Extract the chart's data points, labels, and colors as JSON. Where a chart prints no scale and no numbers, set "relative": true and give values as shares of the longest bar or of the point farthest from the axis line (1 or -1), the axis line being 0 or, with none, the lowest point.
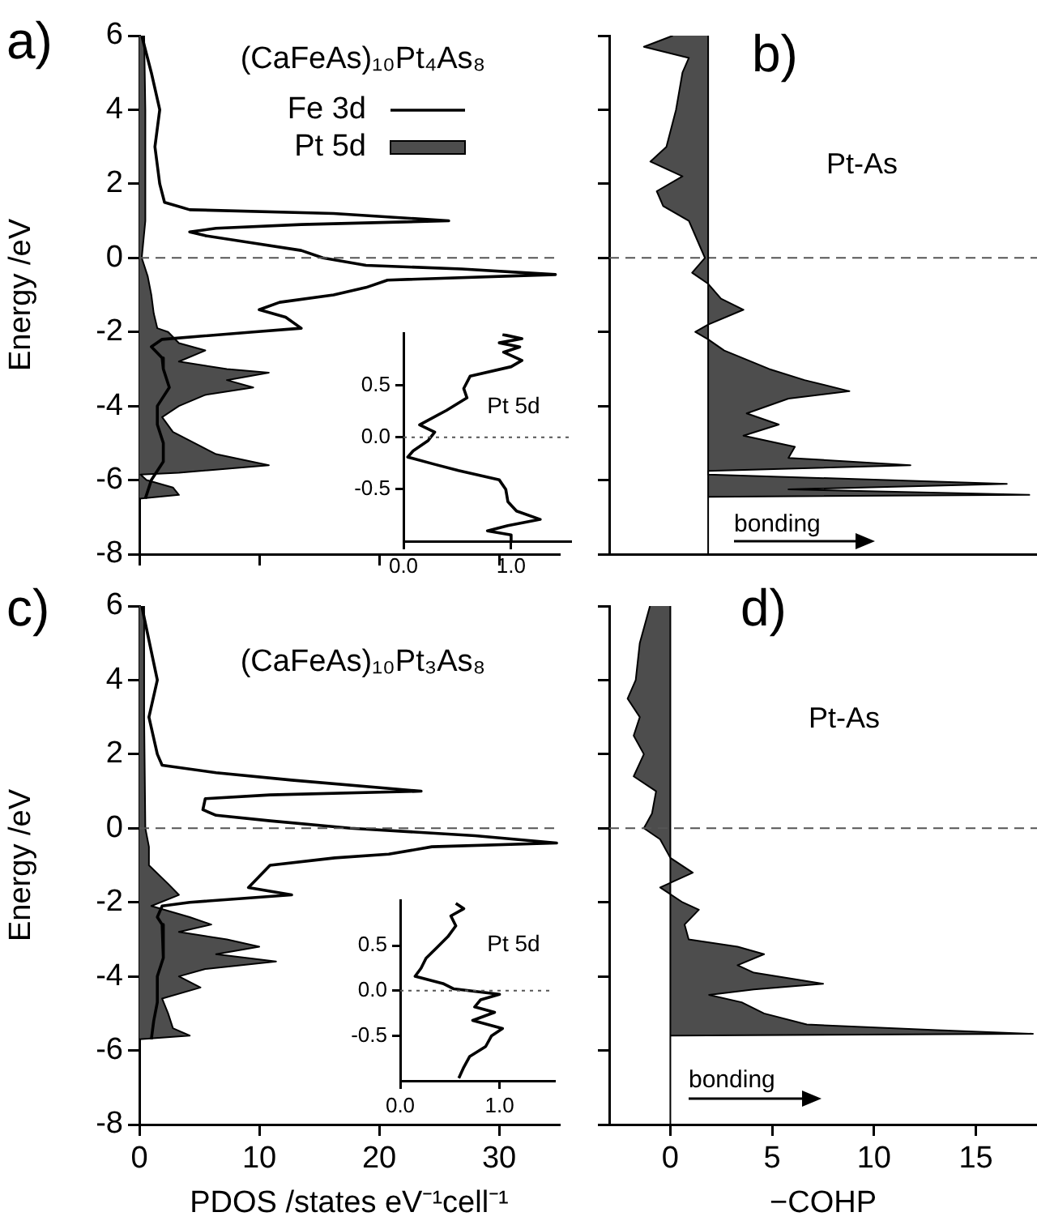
{
  "chart_data": [
    {
      "type": "line",
      "orientation": "horizontal",
      "title": "a)",
      "ylabel": "Energy /eV",
      "annotations": [
        "(CaFeAs)₁₀Pt₄As₈"
      ],
      "legend": "top right",
      "xlim": [
        0,
        35
      ],
      "xticks": [
        {
          "value": 0,
          "label": null
        },
        {
          "value": 10,
          "label": null
        },
        {
          "value": 20,
          "label": null
        },
        {
          "value": 30,
          "label": null
        }
      ],
      "ylim": [
        -8,
        6
      ],
      "yticks": [
        -8,
        -6,
        -4,
        -2,
        0,
        2,
        4,
        6
      ],
      "tick_labels": "y",
      "ref_lines": [
        {
          "axis": "y",
          "value": 0,
          "line_style": "dashed",
          "color": "#555555"
        }
      ],
      "series": [
        {
          "name": "Fe 3d",
          "color": "#000000",
          "x": [
            6,
            5,
            4,
            3,
            2,
            1.5,
            1.3,
            1.2,
            1.0,
            0.9,
            0.8,
            0.7,
            0.6,
            0.4,
            0.2,
            0,
            -0.2,
            -0.3,
            -0.45,
            -0.6,
            -0.8,
            -1,
            -1.2,
            -1.4,
            -1.6,
            -1.9,
            -2,
            -2.2,
            -2.4,
            -2.7,
            -3,
            -3.5,
            -4,
            -4.5,
            -5,
            -5.5,
            -6,
            -6.5
          ],
          "values": [
            0.2,
            1,
            1.7,
            1.3,
            1.7,
            2.1,
            4.2,
            16.2,
            25.8,
            13.5,
            6.4,
            4.2,
            5.5,
            9.5,
            13.5,
            15.3,
            18.9,
            26.9,
            34.7,
            20.7,
            18.9,
            16.2,
            11.7,
            10,
            12.2,
            13.5,
            9.5,
            1.9,
            1,
            1.9,
            2,
            2.5,
            1.5,
            1.5,
            2,
            2,
            1,
            0.5
          ]
        },
        {
          "name": "Pt 5d",
          "type": "area",
          "color": "#4d4d4d",
          "x": [
            6,
            4,
            2,
            1,
            0,
            -0.5,
            -1,
            -1.5,
            -1.9,
            -2,
            -2.3,
            -2.5,
            -2.8,
            -3,
            -3.1,
            -3.3,
            -3.5,
            -3.7,
            -4,
            -4.3,
            -4.7,
            -5,
            -5.3,
            -5.6,
            -5.8,
            -5.85,
            -6,
            -6.2,
            -6.4,
            -6.5
          ],
          "values": [
            0.4,
            0.5,
            0.5,
            0.5,
            0.2,
            0.7,
            1,
            1.2,
            1.5,
            2.4,
            3.3,
            5.5,
            3.3,
            7.3,
            10.8,
            7.3,
            9.5,
            5.5,
            3.3,
            1.9,
            2.8,
            4.6,
            6.4,
            10.8,
            3.3,
            0.1,
            0.6,
            2.8,
            3.3,
            0
          ]
        }
      ]
    },
    {
      "type": "line",
      "orientation": "horizontal",
      "annotations": [
        "Pt 5d"
      ],
      "xlim": [
        0,
        1.55
      ],
      "xticks": [
        {
          "value": 0,
          "label": "0.0"
        },
        {
          "value": 1,
          "label": "1.0"
        }
      ],
      "ylim": [
        -1,
        1
      ],
      "yticks": [
        -0.5,
        {
          "value": 0,
          "label": "0.0"
        },
        0.5
      ],
      "ref_lines": [
        {
          "axis": "y",
          "value": 0,
          "line_style": "dotted",
          "color": "#555555"
        }
      ],
      "series": [
        {
          "color": "#000000",
          "x": [
            0.99,
            0.95,
            0.91,
            0.87,
            0.82,
            0.74,
            0.68,
            0.59,
            0.47,
            0.38,
            0.26,
            0.12,
            0.05,
            -0.03,
            -0.13,
            -0.19,
            -0.26,
            -0.32,
            -0.41,
            -0.5,
            -0.62,
            -0.71,
            -0.79,
            -0.85,
            -0.9,
            -0.94,
            -1
          ],
          "values": [
            0.92,
            1.1,
            0.89,
            1.08,
            0.93,
            1.1,
            1,
            0.62,
            0.56,
            0.59,
            0.4,
            0.15,
            0.29,
            0.23,
            0.09,
            0.04,
            0.29,
            0.51,
            0.89,
            0.95,
            0.97,
            1.05,
            1.27,
            0.97,
            0.78,
            1,
            1
          ]
        }
      ]
    },
    {
      "type": "area",
      "orientation": "horizontal",
      "relative": true,
      "title": "b)",
      "annotations": [
        "Pt-As",
        "bonding"
      ],
      "ylim": [
        -8,
        6
      ],
      "yticks": [
        {
          "value": -8,
          "label": null
        },
        {
          "value": -6,
          "label": null
        },
        {
          "value": -4,
          "label": null
        },
        {
          "value": -2,
          "label": null
        },
        {
          "value": 0,
          "label": null
        },
        {
          "value": 2,
          "label": null
        },
        {
          "value": 4,
          "label": null
        },
        {
          "value": 6,
          "label": null
        }
      ],
      "tick_labels": false,
      "ref_lines": [
        {
          "axis": "y",
          "value": 0,
          "line_style": "dashed",
          "color": "#555555"
        }
      ],
      "series": [
        {
          "color": "#4d4d4d",
          "x": [
            6,
            5.7,
            5.4,
            5,
            4,
            3,
            2.6,
            2.2,
            1.8,
            1.4,
            1,
            0.4,
            0,
            -0.4,
            -0.7,
            -1.1,
            -1.4,
            -1.8,
            -2,
            -2.2,
            -2.5,
            -3,
            -3.3,
            -3.6,
            -3.8,
            -4.2,
            -4.5,
            -4.8,
            -5.1,
            -5.4,
            -5.6,
            -5.75,
            -5.85,
            -6.1,
            -6.25,
            -6.4,
            -6.45
          ],
          "values": [
            -0.11,
            -0.2,
            -0.06,
            -0.08,
            -0.1,
            -0.13,
            -0.18,
            -0.08,
            -0.16,
            -0.14,
            -0.06,
            -0.03,
            -0.01,
            -0.05,
            0,
            0.04,
            0.11,
            0,
            -0.04,
            0,
            0.05,
            0.19,
            0.3,
            0.44,
            0.25,
            0.12,
            0.22,
            0.11,
            0.27,
            0.25,
            0.63,
            0,
            0,
            0.93,
            0.25,
            1,
            0
          ]
        }
      ]
    },
    {
      "type": "line",
      "orientation": "horizontal",
      "title": "c)",
      "xlabel": "PDOS /states eV⁻¹cell⁻¹",
      "ylabel": "Energy /eV",
      "annotations": [
        "(CaFeAs)₁₀Pt₃As₈"
      ],
      "xlim": [
        0,
        35
      ],
      "xticks": [
        0,
        10,
        20,
        30
      ],
      "ylim": [
        -8,
        6
      ],
      "yticks": [
        -8,
        -6,
        -4,
        -2,
        0,
        2,
        4,
        6
      ],
      "ref_lines": [
        {
          "axis": "y",
          "value": 0,
          "line_style": "dashed",
          "color": "#555555"
        }
      ],
      "series": [
        {
          "color": "#000000",
          "x": [
            6,
            4,
            3,
            2,
            1.7,
            1.5,
            1.3,
            1.0,
            0.9,
            0.8,
            0.5,
            0.35,
            0.2,
            0,
            -0.2,
            -0.4,
            -0.5,
            -0.7,
            -0.8,
            -1,
            -1.3,
            -1.6,
            -1.8,
            -2,
            -2.1,
            -2.4,
            -2.6,
            -3,
            -3.5,
            -4,
            -4.7,
            -5.2,
            -5.7
          ],
          "values": [
            0.2,
            1.5,
            0.8,
            1.5,
            1.9,
            6.4,
            12.7,
            23.5,
            10.9,
            5.5,
            5.3,
            6.4,
            10.9,
            17.6,
            28,
            34.8,
            24.4,
            20.8,
            16.3,
            10.9,
            10,
            9.1,
            12.7,
            4.2,
            1.9,
            1.5,
            1.9,
            2,
            2,
            1.5,
            1.5,
            1.2,
            1
          ]
        },
        {
          "type": "area",
          "color": "#4d4d4d",
          "x": [
            6,
            3,
            0,
            -0.5,
            -1,
            -1.5,
            -1.8,
            -2.1,
            -2.4,
            -2.6,
            -2.8,
            -3,
            -3.2,
            -3.4,
            -3.6,
            -3.8,
            -4,
            -4.3,
            -4.6,
            -5,
            -5.4,
            -5.6,
            -5.7
          ],
          "values": [
            0.4,
            0.4,
            0.5,
            0.8,
            0.8,
            2.4,
            3.3,
            1,
            4.2,
            6,
            3.3,
            7.3,
            10,
            6.4,
            11.4,
            5.5,
            3.3,
            5.1,
            1.9,
            2.4,
            2.8,
            4.2,
            0
          ]
        }
      ]
    },
    {
      "type": "line",
      "orientation": "horizontal",
      "annotations": [
        "Pt 5d"
      ],
      "xlim": [
        0,
        1.55
      ],
      "xticks": [
        {
          "value": 0,
          "label": "0.0"
        },
        {
          "value": 1,
          "label": "1.0"
        }
      ],
      "ylim": [
        -1,
        1
      ],
      "yticks": [
        -0.5,
        {
          "value": 0,
          "label": "0.0"
        },
        0.5
      ],
      "ref_lines": [
        {
          "axis": "y",
          "value": 0,
          "line_style": "dotted",
          "color": "#555555"
        }
      ],
      "series": [
        {
          "color": "#000000",
          "x": [
            0.97,
            0.91,
            0.83,
            0.72,
            0.6,
            0.48,
            0.36,
            0.25,
            0.16,
            0.08,
            0.02,
            -0.04,
            -0.1,
            -0.18,
            -0.24,
            -0.33,
            -0.42,
            -0.5,
            -0.62,
            -0.73,
            -0.85,
            -0.97
          ],
          "values": [
            0.56,
            0.64,
            0.51,
            0.56,
            0.48,
            0.37,
            0.26,
            0.21,
            0.15,
            0.43,
            0.54,
            1,
            0.81,
            0.75,
            0.95,
            0.73,
            1.03,
            0.92,
            0.86,
            0.7,
            0.64,
            0.59
          ]
        }
      ]
    },
    {
      "type": "area",
      "orientation": "horizontal",
      "title": "d)",
      "xlabel": "−COHP",
      "annotations": [
        "Pt-As",
        "bonding"
      ],
      "xlim": [
        -3,
        18
      ],
      "xticks": [
        0,
        5,
        10,
        15
      ],
      "ylim": [
        -8,
        6
      ],
      "yticks": [
        {
          "value": -8,
          "label": null
        },
        {
          "value": -6,
          "label": null
        },
        {
          "value": -4,
          "label": null
        },
        {
          "value": -2,
          "label": null
        },
        {
          "value": 0,
          "label": null
        },
        {
          "value": 2,
          "label": null
        },
        {
          "value": 4,
          "label": null
        },
        {
          "value": 6,
          "label": null
        }
      ],
      "tick_labels": "x",
      "ref_lines": [
        {
          "axis": "y",
          "value": 0,
          "line_style": "dashed",
          "color": "#555555"
        },
        {
          "axis": "x",
          "value": 0,
          "line_style": "solid",
          "color": "#000000"
        }
      ],
      "series": [
        {
          "color": "#4d4d4d",
          "x": [
            6,
            5,
            4,
            3.5,
            3,
            2.5,
            2,
            1.4,
            1,
            0.4,
            0,
            -0.3,
            -0.8,
            -1.2,
            -1.6,
            -2,
            -2.2,
            -2.6,
            -3,
            -3.2,
            -3.4,
            -3.7,
            -3.9,
            -4.2,
            -4.35,
            -4.5,
            -4.7,
            -5,
            -5.3,
            -5.45,
            -5.55,
            -5.6
          ],
          "values": [
            -1,
            -1.5,
            -1.7,
            -2.1,
            -1.5,
            -1.8,
            -1.3,
            -1.8,
            -0.7,
            -0.9,
            -1.3,
            -0.5,
            0,
            1.1,
            -0.5,
            0.6,
            1.4,
            0.7,
            0.9,
            3.3,
            4.6,
            3.3,
            4.1,
            7.5,
            4.1,
            1.9,
            3.5,
            4.6,
            6.7,
            13.1,
            17.8,
            0
          ]
        }
      ]
    }
  ]
}
